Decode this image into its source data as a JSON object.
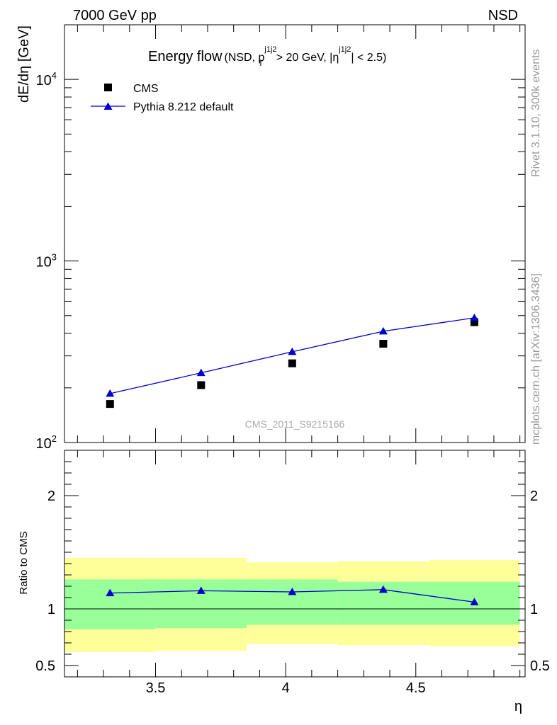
{
  "header": {
    "energy_label": "7000 GeV pp",
    "process_label": "NSD"
  },
  "side_labels": {
    "rivet": "Rivet 3.1.10,  300k events",
    "mcplots": "mcplots.cern.ch [arXiv:1306.3436]"
  },
  "watermark": "CMS_2011_S9215166",
  "chart_data": [
    {
      "type": "scatter",
      "title": "Energy flow",
      "title_parts": {
        "main": "Energy flow",
        "open": "(NSD, p",
        "sup1": "j1j2",
        "sub1": "T",
        "mid": " > 20 GeV, |η",
        "sup2": "j1j2",
        "close": "| < 2.5)"
      },
      "ylabel": "dE/dη [GeV]",
      "yscale": "log",
      "ylim": [
        100,
        20000
      ],
      "xlim": [
        3.15,
        4.92
      ],
      "y_ticks": [
        {
          "value": 100,
          "base": "10",
          "exp": "2"
        },
        {
          "value": 1000,
          "base": "10",
          "exp": "3"
        },
        {
          "value": 10000,
          "base": "10",
          "exp": "4"
        }
      ],
      "legend": [
        {
          "label": "CMS",
          "marker": "square",
          "color": "#000000"
        },
        {
          "label": "Pythia 8.212 default",
          "marker": "triangle",
          "color": "#0000cc"
        }
      ],
      "series": [
        {
          "name": "CMS",
          "x": [
            3.325,
            3.675,
            4.025,
            4.375,
            4.725
          ],
          "values": [
            163,
            207,
            273,
            350,
            460
          ]
        },
        {
          "name": "Pythia 8.212 default",
          "x": [
            3.325,
            3.675,
            4.025,
            4.375,
            4.725
          ],
          "values": [
            186,
            242,
            316,
            410,
            486
          ]
        }
      ]
    },
    {
      "type": "line",
      "ylabel": "Ratio to CMS",
      "xlabel": "η",
      "ylim": [
        0.4,
        2.4
      ],
      "xlim": [
        3.15,
        4.92
      ],
      "x_ticks": [
        {
          "value": 3.5,
          "label": "3.5"
        },
        {
          "value": 4.0,
          "label": "4"
        },
        {
          "value": 4.5,
          "label": "4.5"
        }
      ],
      "y_ticks": [
        {
          "value": 0.5,
          "label": "0.5"
        },
        {
          "value": 1.0,
          "label": "1"
        },
        {
          "value": 2.0,
          "label": "2"
        }
      ],
      "bins": [
        {
          "lo": 3.15,
          "hi": 3.5,
          "inner": [
            0.82,
            1.26
          ],
          "outer": [
            0.62,
            1.45
          ]
        },
        {
          "lo": 3.5,
          "hi": 3.85,
          "inner": [
            0.83,
            1.26
          ],
          "outer": [
            0.63,
            1.45
          ]
        },
        {
          "lo": 3.85,
          "hi": 4.2,
          "inner": [
            0.86,
            1.26
          ],
          "outer": [
            0.69,
            1.41
          ]
        },
        {
          "lo": 4.2,
          "hi": 4.55,
          "inner": [
            0.86,
            1.24
          ],
          "outer": [
            0.68,
            1.42
          ]
        },
        {
          "lo": 4.55,
          "hi": 4.9,
          "inner": [
            0.86,
            1.24
          ],
          "outer": [
            0.67,
            1.43
          ]
        }
      ],
      "series": [
        {
          "name": "Pythia 8.212 default",
          "x": [
            3.325,
            3.675,
            4.025,
            4.375,
            4.725
          ],
          "values": [
            1.14,
            1.16,
            1.15,
            1.17,
            1.06
          ]
        }
      ],
      "reference_line": 1.0,
      "band_colors": {
        "inner": "#99ff99",
        "outer": "#ffff99"
      }
    }
  ]
}
